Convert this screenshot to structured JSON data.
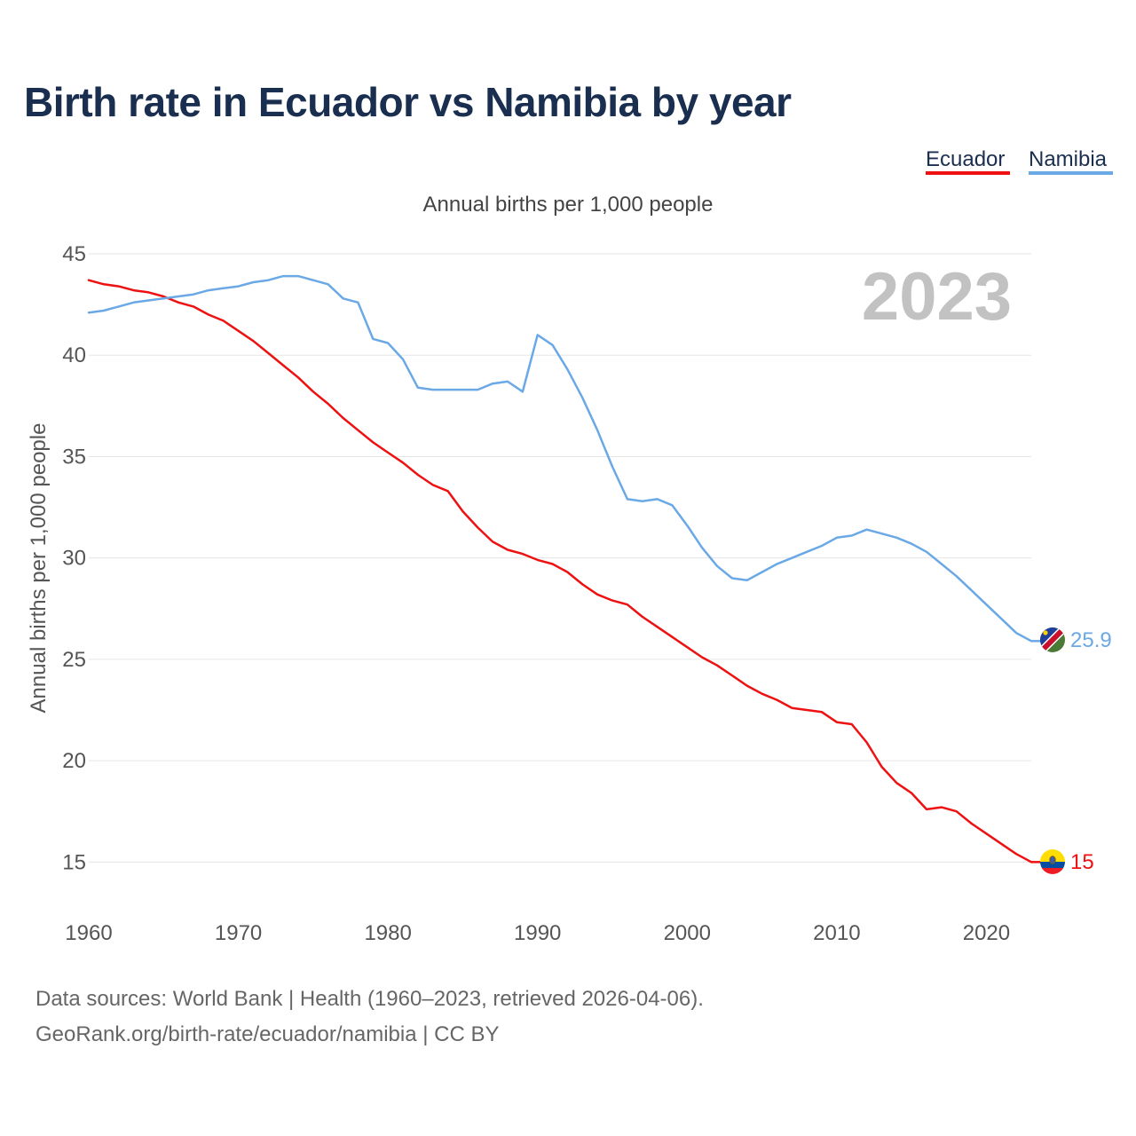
{
  "chart_data": {
    "type": "line",
    "title": "Birth rate in Ecuador vs Namibia by year",
    "subtitle": "Annual births per 1,000 people",
    "ylabel": "Annual births per 1,000 people",
    "xlabel": "",
    "watermark_year": "2023",
    "xlim": [
      1960,
      2023
    ],
    "ylim": [
      13,
      45
    ],
    "x_ticks": [
      1960,
      1970,
      1980,
      1990,
      2000,
      2010,
      2020
    ],
    "y_ticks": [
      15,
      20,
      25,
      30,
      35,
      40,
      45
    ],
    "grid": true,
    "legend": {
      "position": "top-right",
      "entries": [
        "Ecuador",
        "Namibia"
      ]
    },
    "x": [
      1960,
      1961,
      1962,
      1963,
      1964,
      1965,
      1966,
      1967,
      1968,
      1969,
      1970,
      1971,
      1972,
      1973,
      1974,
      1975,
      1976,
      1977,
      1978,
      1979,
      1980,
      1981,
      1982,
      1983,
      1984,
      1985,
      1986,
      1987,
      1988,
      1989,
      1990,
      1991,
      1992,
      1993,
      1994,
      1995,
      1996,
      1997,
      1998,
      1999,
      2000,
      2001,
      2002,
      2003,
      2004,
      2005,
      2006,
      2007,
      2008,
      2009,
      2010,
      2011,
      2012,
      2013,
      2014,
      2015,
      2016,
      2017,
      2018,
      2019,
      2020,
      2021,
      2022,
      2023
    ],
    "series": [
      {
        "name": "Ecuador",
        "color": "#ee1111",
        "end_label": "15",
        "values": [
          43.7,
          43.5,
          43.4,
          43.2,
          43.1,
          42.9,
          42.6,
          42.4,
          42.0,
          41.7,
          41.2,
          40.7,
          40.1,
          39.5,
          38.9,
          38.2,
          37.6,
          36.9,
          36.3,
          35.7,
          35.2,
          34.7,
          34.1,
          33.6,
          33.3,
          32.3,
          31.5,
          30.8,
          30.4,
          30.2,
          29.9,
          29.7,
          29.3,
          28.7,
          28.2,
          27.9,
          27.7,
          27.1,
          26.6,
          26.1,
          25.6,
          25.1,
          24.7,
          24.2,
          23.7,
          23.3,
          23.0,
          22.6,
          22.5,
          22.4,
          21.9,
          21.8,
          20.9,
          19.7,
          18.9,
          18.4,
          17.6,
          17.7,
          17.5,
          16.9,
          16.4,
          15.9,
          15.4,
          15.0
        ]
      },
      {
        "name": "Namibia",
        "color": "#6aa8e6",
        "end_label": "25.9",
        "values": [
          42.1,
          42.2,
          42.4,
          42.6,
          42.7,
          42.8,
          42.9,
          43.0,
          43.2,
          43.3,
          43.4,
          43.6,
          43.7,
          43.9,
          43.9,
          43.7,
          43.5,
          42.8,
          42.6,
          40.8,
          40.6,
          39.8,
          38.4,
          38.3,
          38.3,
          38.3,
          38.3,
          38.6,
          38.7,
          38.2,
          41.0,
          40.5,
          39.3,
          37.9,
          36.3,
          34.5,
          32.9,
          32.8,
          32.9,
          32.6,
          31.6,
          30.5,
          29.6,
          29.0,
          28.9,
          29.3,
          29.7,
          30.0,
          30.3,
          30.6,
          31.0,
          31.1,
          31.4,
          31.2,
          31.0,
          30.7,
          30.3,
          29.7,
          29.1,
          28.4,
          27.7,
          27.0,
          26.3,
          25.9
        ]
      }
    ]
  },
  "legend": {
    "ecuador": "Ecuador",
    "namibia": "Namibia"
  },
  "footer": {
    "source_line": "Data sources: World Bank | Health (1960–2023, retrieved 2026-04-06).",
    "url_line": "GeoRank.org/birth-rate/ecuador/namibia | CC BY"
  },
  "colors": {
    "title": "#1a2e4f",
    "ecuador": "#ee1111",
    "namibia": "#6aa8e6",
    "grid": "#e6e6e6",
    "watermark": "#c2c2c2"
  }
}
